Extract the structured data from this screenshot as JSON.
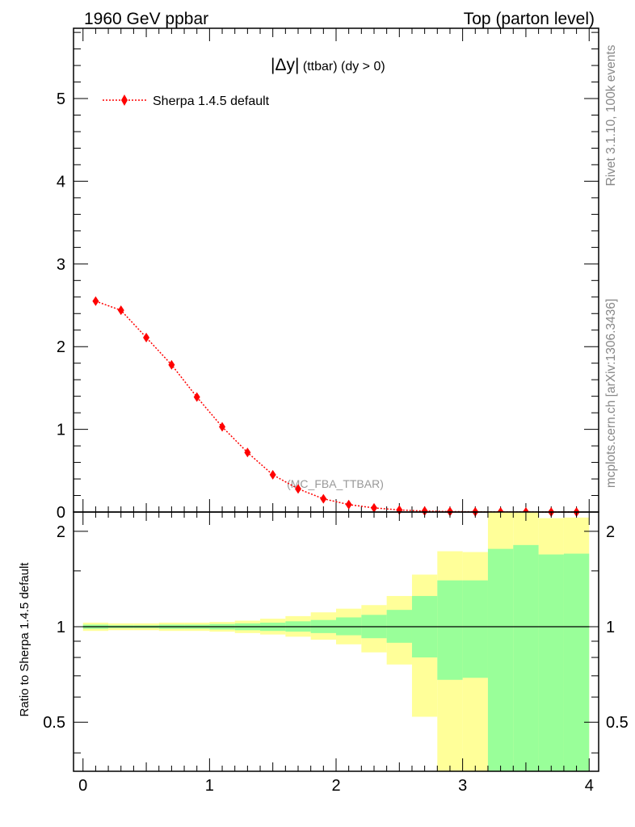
{
  "header": {
    "left": "1960 GeV ppbar",
    "right": "Top (parton level)"
  },
  "side_labels": {
    "rivet": "Rivet 3.1.10,  100k events",
    "mcplots": "mcplots.cern.ch [arXiv:1306.3436]"
  },
  "chart_data": [
    {
      "type": "line",
      "title_main": "|Δy|",
      "title_sub": " (ttbar) (dy > 0)",
      "watermark": "(MC_FBA_TTBAR)",
      "xlim": [
        -0.075,
        4.075
      ],
      "ylim": [
        0,
        5.85
      ],
      "grid": false,
      "legend_position": "top-left",
      "y_ticks": [
        {
          "value": 0,
          "label": "0"
        },
        {
          "value": 1,
          "label": "1"
        },
        {
          "value": 2,
          "label": "2"
        },
        {
          "value": 3,
          "label": "3"
        },
        {
          "value": 4,
          "label": "4"
        },
        {
          "value": 5,
          "label": "5"
        }
      ],
      "series": [
        {
          "name": "Sherpa 1.4.5 default",
          "color": "#ff0000",
          "marker": "diamond",
          "line_style": "dotted",
          "x": [
            0.1,
            0.3,
            0.5,
            0.7,
            0.9,
            1.1,
            1.3,
            1.5,
            1.7,
            1.9,
            2.1,
            2.3,
            2.5,
            2.7,
            2.9,
            3.1,
            3.3,
            3.5,
            3.7,
            3.9
          ],
          "y": [
            2.55,
            2.44,
            2.11,
            1.78,
            1.39,
            1.03,
            0.72,
            0.45,
            0.28,
            0.16,
            0.09,
            0.05,
            0.025,
            0.012,
            0.006,
            0.003,
            0.0015,
            0.0008,
            0.0004,
            0.0002
          ]
        }
      ]
    },
    {
      "type": "area",
      "ylabel": "Ratio to Sherpa 1.4.5 default",
      "xlim": [
        -0.075,
        4.075
      ],
      "ylim": [
        0.35,
        2.3
      ],
      "y_scale": "log",
      "reference_line": 1,
      "x_ticks": [
        {
          "value": 0,
          "label": "0"
        },
        {
          "value": 1,
          "label": "1"
        },
        {
          "value": 2,
          "label": "2"
        },
        {
          "value": 3,
          "label": "3"
        },
        {
          "value": 4,
          "label": "4"
        }
      ],
      "y_ticks": [
        {
          "value": 0.5,
          "label": "0.5"
        },
        {
          "value": 1,
          "label": "1"
        },
        {
          "value": 2,
          "label": "2"
        }
      ],
      "bins": [
        0,
        0.2,
        0.4,
        0.6,
        0.8,
        1.0,
        1.2,
        1.4,
        1.6,
        1.8,
        2.0,
        2.2,
        2.4,
        2.6,
        2.8,
        3.0,
        3.2,
        3.4,
        3.6,
        3.8,
        4.0
      ],
      "bands": [
        {
          "name": "outer",
          "color": "#ffff99",
          "lo": [
            0.97,
            0.975,
            0.975,
            0.97,
            0.97,
            0.965,
            0.955,
            0.945,
            0.93,
            0.91,
            0.88,
            0.83,
            0.76,
            0.52,
            0.3,
            0.3,
            0.3,
            0.3,
            0.3,
            0.3
          ],
          "hi": [
            1.03,
            1.025,
            1.025,
            1.03,
            1.03,
            1.035,
            1.045,
            1.06,
            1.08,
            1.11,
            1.14,
            1.17,
            1.25,
            1.46,
            1.73,
            1.72,
            2.45,
            2.45,
            2.2,
            2.21
          ]
        },
        {
          "name": "inner",
          "color": "#99ff99",
          "lo": [
            0.985,
            0.99,
            0.99,
            0.985,
            0.985,
            0.98,
            0.975,
            0.97,
            0.965,
            0.955,
            0.94,
            0.92,
            0.89,
            0.8,
            0.68,
            0.69,
            0.3,
            0.3,
            0.3,
            0.3
          ],
          "hi": [
            1.015,
            1.01,
            1.01,
            1.015,
            1.015,
            1.02,
            1.025,
            1.03,
            1.04,
            1.05,
            1.07,
            1.09,
            1.13,
            1.25,
            1.4,
            1.4,
            1.76,
            1.81,
            1.69,
            1.7
          ]
        }
      ]
    }
  ]
}
